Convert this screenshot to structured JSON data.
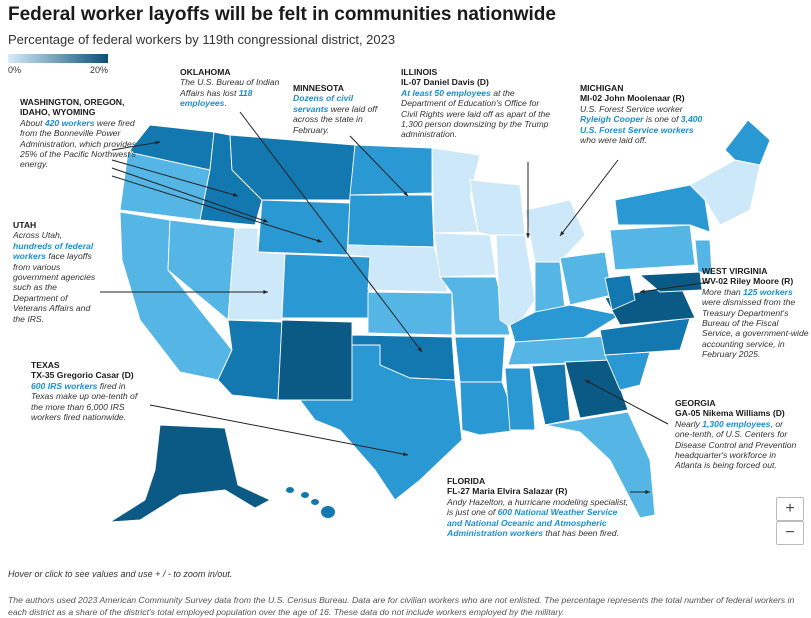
{
  "header": {
    "title": "Federal worker layoffs will be felt in communities nationwide",
    "subtitle": "Percentage of federal workers by 119th congressional district, 2023"
  },
  "legend": {
    "min_label": "0%",
    "max_label": "20%",
    "color_low": "#d6ecfa",
    "color_high": "#0b4f75"
  },
  "colors": {
    "highlight": "#1a8fd0",
    "light": "#cde8f8",
    "medium": "#55b6e6",
    "mid": "#2a98d3",
    "dark": "#1377b0",
    "darkest": "#0b5a85",
    "border": "#ffffff"
  },
  "annotations": {
    "washington": {
      "heading": "WASHINGTON, OREGON, IDAHO, WYOMING",
      "pre": "About ",
      "highlight": "420 workers",
      "post": " were fired from the Bonneville Power Administration, which provides 25% of the Pacific Northwest's energy."
    },
    "oklahoma": {
      "heading": "OKLAHOMA",
      "pre": "The U.S. Bureau of Indian Affairs has lost ",
      "highlight": "118 employees",
      "post": "."
    },
    "minnesota": {
      "heading": "MINNESOTA",
      "pre": "",
      "highlight": "Dozens of civil servants",
      "post": " were laid off across the state in February."
    },
    "illinois": {
      "heading": "ILLINOIS",
      "sub": "IL-07 Daniel Davis (D)",
      "pre": "",
      "highlight": "At least 50 employees",
      "post": " at the Department of Education's Office for Civil Rights were laid off as apart of the 1,300 person downsizing by the Trump administration."
    },
    "michigan": {
      "heading": "MICHIGAN",
      "sub": "MI-02 John Moolenaar (R)",
      "pre": "U.S. Forest Service worker ",
      "highlight": "Ryleigh Cooper",
      "mid": " is one of ",
      "highlight2": "3,400 U.S. Forest Service workers",
      "post": " who were laid off."
    },
    "utah": {
      "heading": "UTAH",
      "pre": "Across Utah, ",
      "highlight": "hundreds of federal workers",
      "post": " face layoffs from various government agencies such as the Department of Veterans Affairs and the IRS."
    },
    "westvirginia": {
      "heading": "WEST VIRGINIA",
      "sub": "WV-02 Riley Moore (R)",
      "pre": "More than ",
      "highlight": "125 workers",
      "post": " were dismissed from the Treasury Department's Bureau of the Fiscal Service, a government-wide accounting service, in February 2025."
    },
    "texas": {
      "heading": "TEXAS",
      "sub": "TX-35 Gregorio Casar (D)",
      "pre": "",
      "highlight": "600 IRS workers",
      "post": " fired in Texas make up one-tenth of the more than 6,000 IRS workers fired nationwide."
    },
    "georgia": {
      "heading": "GEORGIA",
      "sub": "GA-05 Nikema Williams (D)",
      "pre": "Nearly ",
      "highlight": "1,300 employees",
      "post": ", or one-tenth, of U.S. Centers for Disease Control and Prevention headquarter's workforce in Atlanta is being forced out."
    },
    "florida": {
      "heading": "FLORIDA",
      "sub": "FL-27 Maria Elvira Salazar (R)",
      "pre": "Andy Hazelton, a hurricane modeling specialist, is just one of ",
      "highlight": "600 National Weather Service and National Oceanic and Atmospheric Administration workers",
      "post": " that has been fired."
    }
  },
  "controls": {
    "zoom_in": "+",
    "zoom_out": "−"
  },
  "hint": "Hover or click to see values and use + / - to zoom in/out.",
  "footnote": "The authors used 2023 American Community Survey data from the U.S. Census Bureau. Data are for civilian workers who are not enlisted. The percentage represents the total number of federal workers in each district as a share of the district's total employed population over the age of 16. These data do not include workers employed by the military."
}
